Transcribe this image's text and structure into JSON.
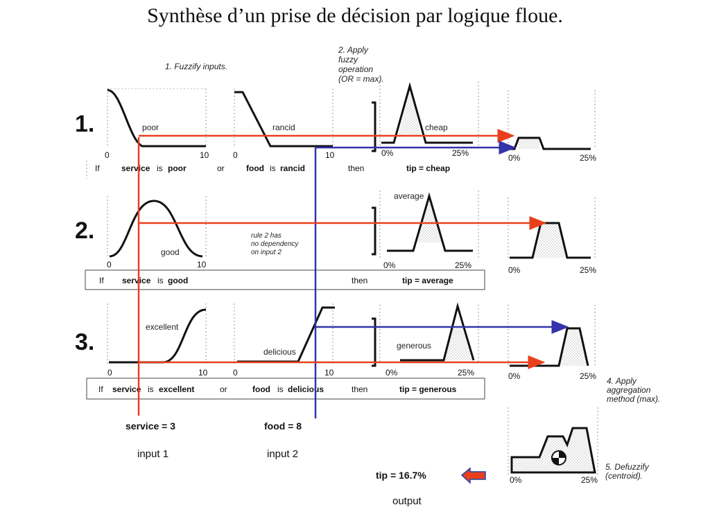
{
  "title": "Synthèse d’un prise de décision par logique floue.",
  "steps": {
    "s1": "1. Fuzzify inputs.",
    "s2": [
      "2. Apply",
      "fuzzy",
      "operation",
      "(OR = max)."
    ],
    "s4": [
      "4. Apply",
      "aggregation",
      "method (max)."
    ],
    "s5": [
      "5. Defuzzify",
      "(centroid)."
    ]
  },
  "rule_numbers": [
    "1.",
    "2.",
    "3."
  ],
  "mf_labels": {
    "poor": "poor",
    "rancid": "rancid",
    "cheap": "cheap",
    "good": "good",
    "average": "average",
    "excellent": "excellent",
    "delicious": "delicious",
    "generous": "generous"
  },
  "note": [
    "rule 2 has",
    "no dependency",
    "on input 2"
  ],
  "axis": {
    "zero": "0",
    "ten": "10",
    "zero_pct": "0%",
    "max_pct": "25%"
  },
  "rules": {
    "r1": {
      "if": "If",
      "v1": "service",
      "is": "is",
      "t1": "poor",
      "or": "or",
      "v2": "food",
      "t2": "rancid",
      "then": "then",
      "out": "tip = cheap"
    },
    "r2": {
      "if": "If",
      "v1": "service",
      "is": "is",
      "t1": "good",
      "then": "then",
      "out": "tip = average"
    },
    "r3": {
      "if": "If",
      "v1": "service",
      "is": "is",
      "t1": "excellent",
      "or": "or",
      "v2": "food",
      "t2": "delicious",
      "then": "then",
      "out": "tip = generous"
    }
  },
  "inputs": {
    "service_value": "service = 3",
    "service_label": "input 1",
    "food_value": "food = 8",
    "food_label": "input 2"
  },
  "output": {
    "value": "tip = 16.7%",
    "label": "output"
  },
  "colors": {
    "red": "#e8401c",
    "blue": "#3333aa",
    "arrow_fill": "#e8401c",
    "arrow_stroke": "#2244aa"
  }
}
